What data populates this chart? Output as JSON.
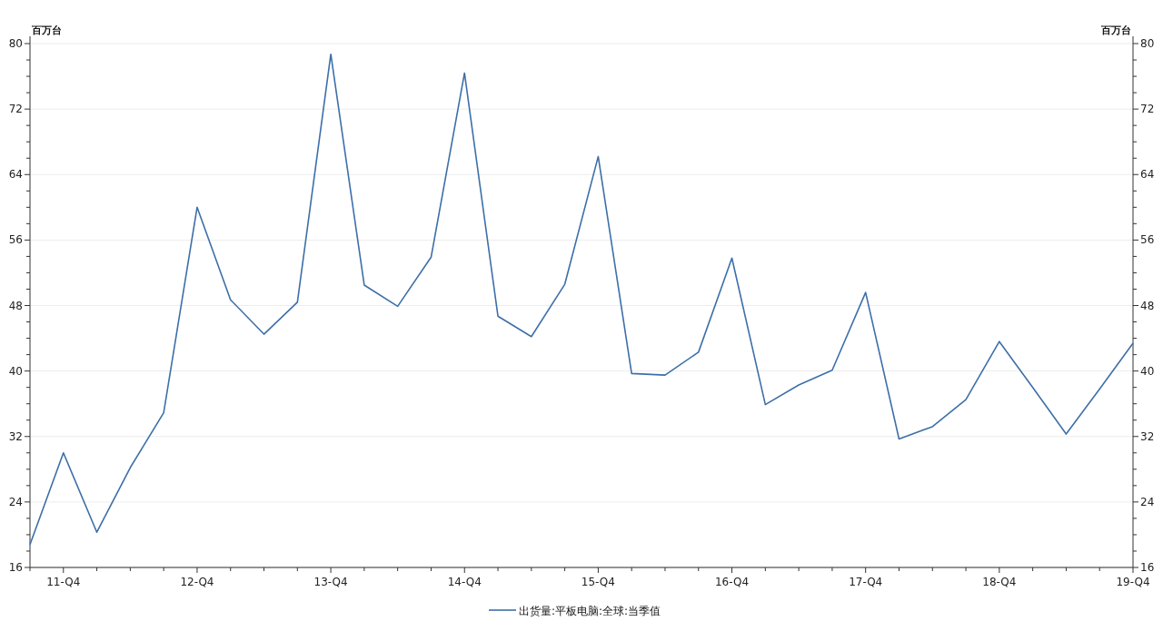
{
  "chart_data": {
    "type": "line",
    "ylabel": "百万台",
    "y2label": "百万台",
    "categories": [
      null,
      "11-Q4",
      null,
      null,
      null,
      "12-Q4",
      null,
      null,
      null,
      "13-Q4",
      null,
      null,
      null,
      "14-Q4",
      null,
      null,
      null,
      "15-Q4",
      null,
      null,
      null,
      "16-Q4",
      null,
      null,
      null,
      "17-Q4",
      null,
      null,
      null,
      "18-Q4",
      null,
      null,
      null,
      "19-Q4"
    ],
    "series": [
      {
        "name": "出货量:平板电脑:全球:当季值",
        "color": "#3d6fa8",
        "values": [
          18.8,
          30.0,
          20.3,
          28.2,
          34.9,
          60.0,
          48.7,
          44.5,
          48.4,
          78.7,
          50.5,
          47.9,
          53.9,
          76.4,
          46.7,
          44.2,
          50.6,
          66.2,
          39.7,
          39.5,
          42.3,
          53.8,
          35.9,
          38.3,
          40.1,
          49.6,
          31.7,
          33.2,
          36.5,
          43.6,
          38.0,
          32.3,
          37.8,
          43.4
        ]
      }
    ],
    "ylim": [
      16,
      80
    ],
    "yticks": [
      16,
      24,
      32,
      40,
      48,
      56,
      64,
      72,
      80
    ],
    "y2lim": [
      16,
      80
    ],
    "y2ticks": [
      16,
      24,
      32,
      40,
      48,
      56,
      64,
      72,
      80
    ],
    "grid": "y",
    "legend": "bottom",
    "marker": "none",
    "line_style": "solid"
  }
}
